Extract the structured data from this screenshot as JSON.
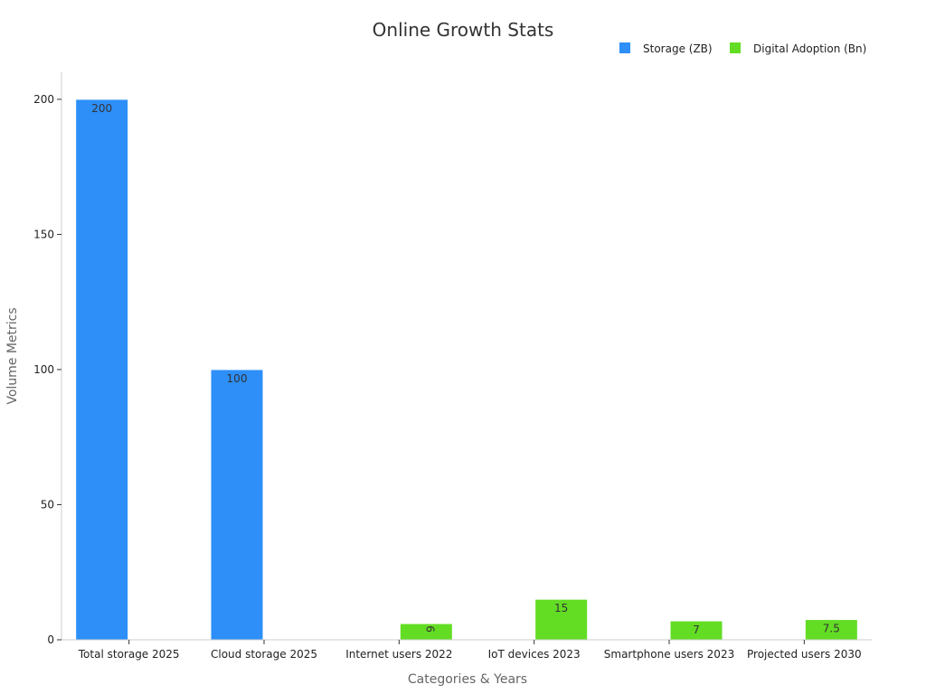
{
  "chart_data": {
    "type": "bar",
    "title": "Online Growth Stats",
    "xlabel": "Categories & Years",
    "ylabel": "Volume Metrics",
    "categories": [
      "Total storage 2025",
      "Cloud storage 2025",
      "Internet users 2022",
      "IoT devices 2023",
      "Smartphone users 2023",
      "Projected users 2030"
    ],
    "series": [
      {
        "name": "Storage (ZB)",
        "color": "#2d8ff7",
        "values": [
          200,
          100,
          null,
          null,
          null,
          null
        ]
      },
      {
        "name": "Digital Adoption (Bn)",
        "color": "#63dd24",
        "values": [
          null,
          null,
          6,
          15,
          7,
          7.5
        ]
      }
    ],
    "data_labels": [
      "200",
      "100",
      "6",
      "15",
      "7",
      "7.5"
    ],
    "ylim": [
      0,
      210
    ],
    "yticks": [
      0,
      50,
      100,
      150,
      200
    ],
    "grid": false,
    "legend_position": "top-right"
  }
}
